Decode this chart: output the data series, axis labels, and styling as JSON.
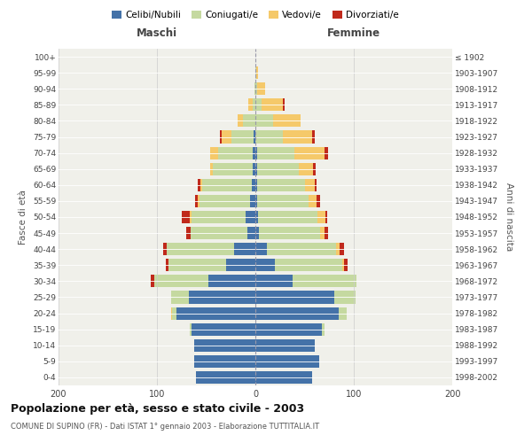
{
  "age_groups": [
    "0-4",
    "5-9",
    "10-14",
    "15-19",
    "20-24",
    "25-29",
    "30-34",
    "35-39",
    "40-44",
    "45-49",
    "50-54",
    "55-59",
    "60-64",
    "65-69",
    "70-74",
    "75-79",
    "80-84",
    "85-89",
    "90-94",
    "95-99",
    "100+"
  ],
  "birth_years": [
    "1998-2002",
    "1993-1997",
    "1988-1992",
    "1983-1987",
    "1978-1982",
    "1973-1977",
    "1968-1972",
    "1963-1967",
    "1958-1962",
    "1953-1957",
    "1948-1952",
    "1943-1947",
    "1938-1942",
    "1933-1937",
    "1928-1932",
    "1923-1927",
    "1918-1922",
    "1913-1917",
    "1908-1912",
    "1903-1907",
    "≤ 1902"
  ],
  "maschi": {
    "celibi": [
      60,
      62,
      62,
      65,
      80,
      68,
      48,
      30,
      22,
      8,
      10,
      5,
      4,
      3,
      3,
      2,
      0,
      0,
      0,
      0,
      0
    ],
    "coniugati": [
      0,
      0,
      0,
      2,
      5,
      18,
      55,
      58,
      68,
      58,
      55,
      52,
      50,
      40,
      35,
      22,
      13,
      3,
      1,
      0,
      0
    ],
    "vedovi": [
      0,
      0,
      0,
      0,
      1,
      0,
      0,
      0,
      0,
      0,
      2,
      2,
      2,
      3,
      8,
      10,
      5,
      4,
      0,
      0,
      0
    ],
    "divorziati": [
      0,
      0,
      0,
      0,
      0,
      0,
      3,
      3,
      4,
      4,
      8,
      2,
      3,
      0,
      0,
      2,
      0,
      0,
      0,
      0,
      0
    ]
  },
  "femmine": {
    "nubili": [
      58,
      65,
      60,
      68,
      85,
      80,
      38,
      20,
      12,
      4,
      3,
      2,
      2,
      2,
      2,
      0,
      0,
      0,
      0,
      0,
      0
    ],
    "coniugate": [
      0,
      0,
      0,
      2,
      8,
      22,
      65,
      68,
      70,
      62,
      60,
      52,
      48,
      42,
      38,
      28,
      18,
      6,
      2,
      1,
      0
    ],
    "vedove": [
      0,
      0,
      0,
      0,
      0,
      0,
      0,
      2,
      4,
      4,
      8,
      8,
      10,
      15,
      30,
      30,
      28,
      22,
      8,
      2,
      0
    ],
    "divorziate": [
      0,
      0,
      0,
      0,
      0,
      0,
      0,
      4,
      4,
      4,
      2,
      4,
      2,
      2,
      4,
      2,
      0,
      2,
      0,
      0,
      0
    ]
  },
  "colors": {
    "celibi_nubili": "#4472a8",
    "coniugati": "#c5d9a0",
    "vedovi": "#f5c96a",
    "divorziati": "#c0291b"
  },
  "title": "Popolazione per età, sesso e stato civile - 2003",
  "subtitle": "COMUNE DI SUPINO (FR) - Dati ISTAT 1° gennaio 2003 - Elaborazione TUTTITALIA.IT",
  "xlabel_left": "Maschi",
  "xlabel_right": "Femmine",
  "ylabel_left": "Fasce di età",
  "ylabel_right": "Anni di nascita",
  "xlim": 200,
  "bg_axes": "#f0f0ea"
}
